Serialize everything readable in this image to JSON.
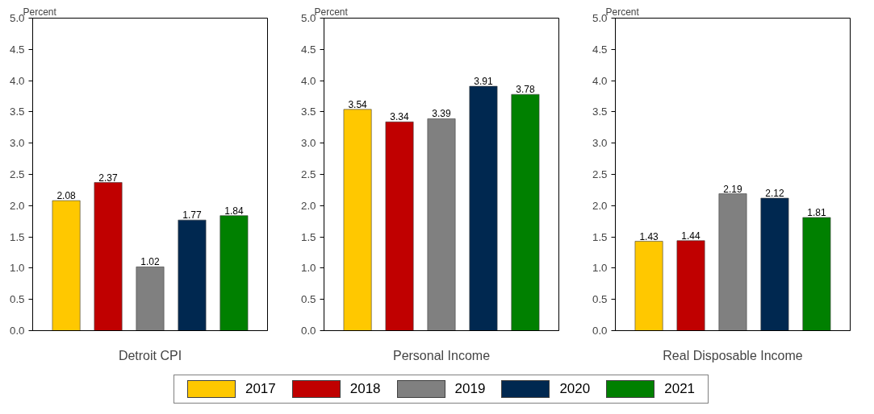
{
  "chart_data": [
    {
      "type": "bar",
      "xlabel": "Detroit CPI",
      "ylabel": "Percent",
      "categories": [
        null
      ],
      "ylim": [
        0,
        5
      ],
      "yticks": [
        {
          "value": 0,
          "label": "0.0"
        },
        {
          "value": 0.5,
          "label": "0.5"
        },
        {
          "value": 1,
          "label": "1.0"
        },
        {
          "value": 1.5,
          "label": "1.5"
        },
        {
          "value": 2,
          "label": "2.0"
        },
        {
          "value": 2.5,
          "label": "2.5"
        },
        {
          "value": 3,
          "label": "3.0"
        },
        {
          "value": 3.5,
          "label": "3.5"
        },
        {
          "value": 4,
          "label": "4.0"
        },
        {
          "value": 4.5,
          "label": "4.5"
        },
        {
          "value": 5,
          "label": "5.0"
        }
      ],
      "data_labels": true,
      "legend": "bottom",
      "series": [
        {
          "name": "2017",
          "color": "#ffc800",
          "values": [
            2.08
          ]
        },
        {
          "name": "2018",
          "color": "#c00000",
          "values": [
            2.37
          ]
        },
        {
          "name": "2019",
          "color": "#808080",
          "values": [
            1.02
          ]
        },
        {
          "name": "2020",
          "color": "#002850",
          "values": [
            1.77
          ]
        },
        {
          "name": "2021",
          "color": "#008000",
          "values": [
            1.84
          ]
        }
      ]
    },
    {
      "type": "bar",
      "xlabel": "Personal Income",
      "ylabel": "Percent",
      "categories": [
        null
      ],
      "ylim": [
        0,
        5
      ],
      "yticks": [
        {
          "value": 0,
          "label": "0.0"
        },
        {
          "value": 0.5,
          "label": "0.5"
        },
        {
          "value": 1,
          "label": "1.0"
        },
        {
          "value": 1.5,
          "label": "1.5"
        },
        {
          "value": 2,
          "label": "2.0"
        },
        {
          "value": 2.5,
          "label": "2.5"
        },
        {
          "value": 3,
          "label": "3.0"
        },
        {
          "value": 3.5,
          "label": "3.5"
        },
        {
          "value": 4,
          "label": "4.0"
        },
        {
          "value": 4.5,
          "label": "4.5"
        },
        {
          "value": 5,
          "label": "5.0"
        }
      ],
      "data_labels": true,
      "series": [
        {
          "color": "#ffc800",
          "values": [
            3.54
          ]
        },
        {
          "color": "#c00000",
          "values": [
            3.34
          ]
        },
        {
          "color": "#808080",
          "values": [
            3.39
          ]
        },
        {
          "color": "#002850",
          "values": [
            3.91
          ]
        },
        {
          "color": "#008000",
          "values": [
            3.78
          ]
        }
      ]
    },
    {
      "type": "bar",
      "xlabel": "Real Disposable Income",
      "ylabel": "Percent",
      "categories": [
        null
      ],
      "ylim": [
        0,
        5
      ],
      "yticks": [
        {
          "value": 0,
          "label": "0.0"
        },
        {
          "value": 0.5,
          "label": "0.5"
        },
        {
          "value": 1,
          "label": "1.0"
        },
        {
          "value": 1.5,
          "label": "1.5"
        },
        {
          "value": 2,
          "label": "2.0"
        },
        {
          "value": 2.5,
          "label": "2.5"
        },
        {
          "value": 3,
          "label": "3.0"
        },
        {
          "value": 3.5,
          "label": "3.5"
        },
        {
          "value": 4,
          "label": "4.0"
        },
        {
          "value": 4.5,
          "label": "4.5"
        },
        {
          "value": 5,
          "label": "5.0"
        }
      ],
      "data_labels": true,
      "series": [
        {
          "color": "#ffc800",
          "values": [
            1.43
          ]
        },
        {
          "color": "#c00000",
          "values": [
            1.44
          ]
        },
        {
          "color": "#808080",
          "values": [
            2.19
          ]
        },
        {
          "color": "#002850",
          "values": [
            2.12
          ]
        },
        {
          "color": "#008000",
          "values": [
            1.81
          ]
        }
      ]
    }
  ]
}
